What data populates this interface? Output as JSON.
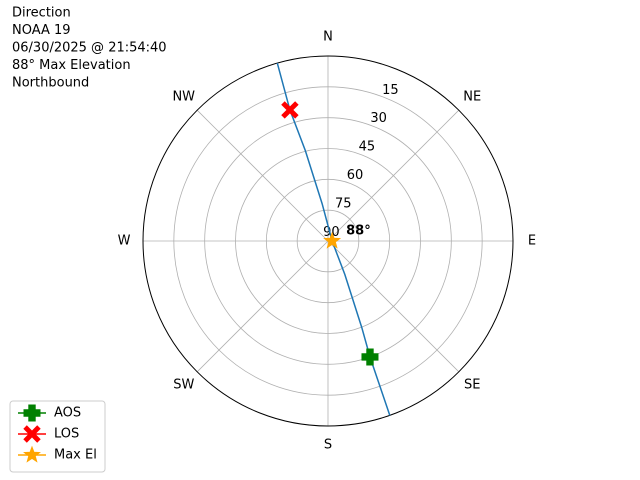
{
  "chart_data": {
    "type": "polar",
    "title_lines": [
      "Direction",
      "NOAA 19",
      "06/30/2025 @ 21:54:40",
      "88° Max Elevation",
      "Northbound"
    ],
    "thetaticks": [
      {
        "value": 0,
        "label": "N"
      },
      {
        "value": 45,
        "label": "NE"
      },
      {
        "value": 90,
        "label": "E"
      },
      {
        "value": 135,
        "label": "SE"
      },
      {
        "value": 180,
        "label": "S"
      },
      {
        "value": 225,
        "label": "SW"
      },
      {
        "value": 270,
        "label": "W"
      },
      {
        "value": 315,
        "label": "NW"
      }
    ],
    "rlim": [
      90,
      0
    ],
    "rticks": [
      15,
      30,
      45,
      60,
      75,
      90
    ],
    "grid": true,
    "track": {
      "color": "#1f77b4",
      "theta": [
        344.1,
        343.8,
        345.9,
        351,
        90,
        153.3,
        158.7,
        160.1,
        160.5
      ],
      "r": [
        0,
        23.6,
        44.6,
        71.6,
        88,
        71.8,
        44.8,
        30,
        0
      ]
    },
    "series": [
      {
        "name": "AOS",
        "color": "#008000",
        "marker": "plus",
        "theta": [
          160.1
        ],
        "r": [
          30
        ]
      },
      {
        "name": "LOS",
        "color": "#ff0000",
        "marker": "x",
        "theta": [
          343.8
        ],
        "r": [
          23.6
        ]
      },
      {
        "name": "Max El",
        "color": "#ffa500",
        "marker": "star",
        "theta": [
          90
        ],
        "r": [
          88
        ]
      }
    ],
    "annotation": "88°",
    "legend": "lower left"
  }
}
